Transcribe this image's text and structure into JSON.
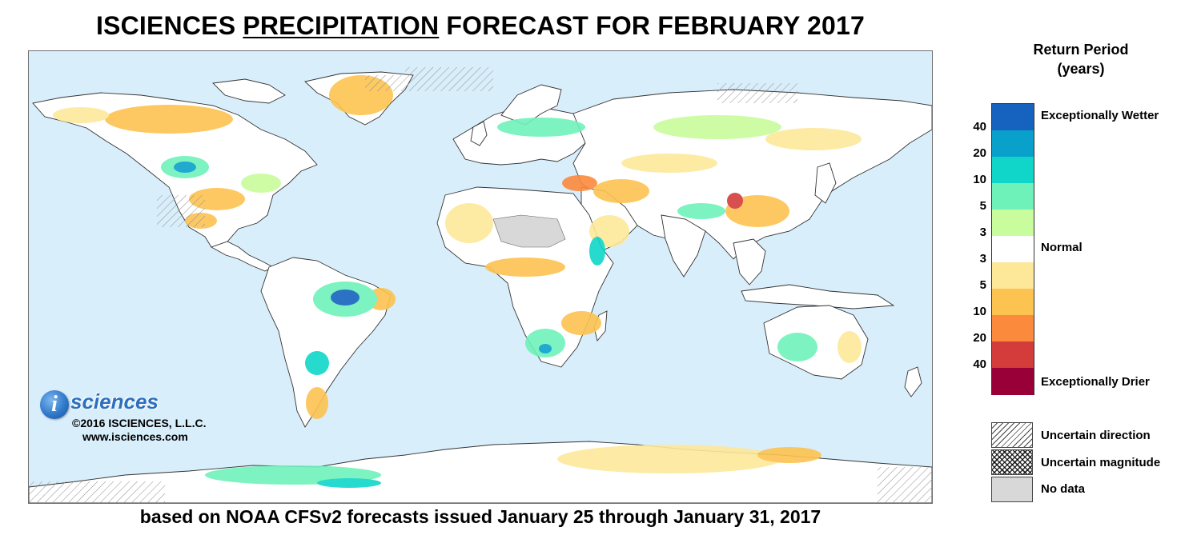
{
  "header": {
    "title_part1": "ISCIENCES ",
    "title_part2": "PRECIPITATION",
    "title_part3": " FORECAST FOR FEBRUARY 2017"
  },
  "logo": {
    "mark": "i",
    "wordmark": "sciences",
    "copyright": "©2016 ISCIENCES, L.L.C.",
    "website": "www.isciences.com"
  },
  "footnote": "based on NOAA CFSv2 forecasts issued January 25 through January 31, 2017",
  "legend": {
    "title_line1": "Return Period",
    "title_line2": "(years)",
    "scale": [
      {
        "tick": "40",
        "color": "#1563be"
      },
      {
        "tick": "20",
        "color": "#0aa0cc"
      },
      {
        "tick": "10",
        "color": "#0fd6c8"
      },
      {
        "tick": "5",
        "color": "#6ef2ba"
      },
      {
        "tick": "3",
        "color": "#c8fc9c"
      },
      {
        "tick": "3",
        "color": "#ffffff"
      },
      {
        "tick": "5",
        "color": "#fde89a"
      },
      {
        "tick": "10",
        "color": "#fdc350"
      },
      {
        "tick": "20",
        "color": "#fb8a3c"
      },
      {
        "tick": "40",
        "color": "#d43c3c"
      },
      {
        "tick": "",
        "color": "#9a0038"
      }
    ],
    "label_top": "Exceptionally Wetter",
    "label_mid": "Normal",
    "label_bottom": "Exceptionally Drier",
    "patterns": {
      "uncertain_direction": "Uncertain direction",
      "uncertain_magnitude": "Uncertain magnitude",
      "no_data": "No data"
    }
  },
  "map": {
    "ocean_color": "#d9eefb",
    "land_color": "#ffffff",
    "border_color": "#333333",
    "no_data_color": "#d8d8d8"
  }
}
